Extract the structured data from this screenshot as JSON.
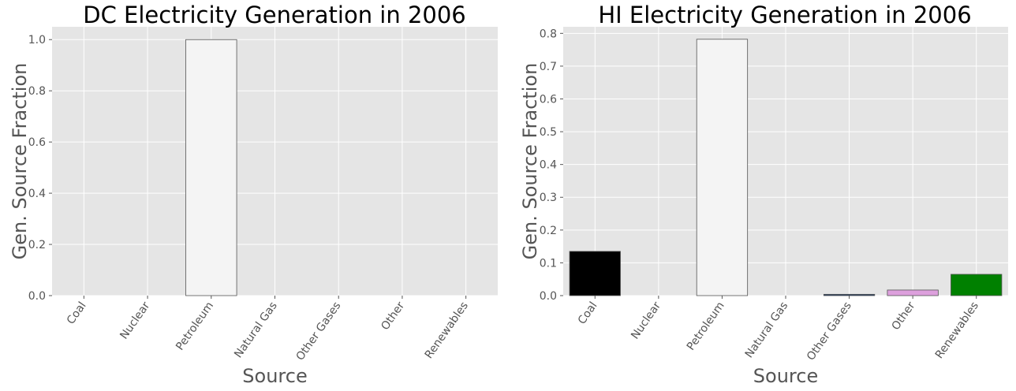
{
  "chart_data": [
    {
      "type": "bar",
      "title": "DC Electricity Generation in 2006",
      "xlabel": "Source",
      "ylabel": "Gen. Source Fraction",
      "categories": [
        "Coal",
        "Nuclear",
        "Petroleum",
        "Natural Gas",
        "Other Gases",
        "Other",
        "Renewables"
      ],
      "values": [
        0,
        0,
        1.0,
        0,
        0,
        0,
        0
      ],
      "colors": [
        "#000000",
        "#ff0000",
        "#f4f4f4",
        "#4169e1",
        "#1e3a5f",
        "#dda0dd",
        "#008000"
      ],
      "ylim": [
        0,
        1.05
      ],
      "yticks": [
        "0.0",
        "0.2",
        "0.4",
        "0.6",
        "0.8",
        "1.0"
      ],
      "grid": true,
      "background": "#e5e5e5"
    },
    {
      "type": "bar",
      "title": "HI Electricity Generation in 2006",
      "xlabel": "Source",
      "ylabel": "Gen. Source Fraction",
      "categories": [
        "Coal",
        "Nuclear",
        "Petroleum",
        "Natural Gas",
        "Other Gases",
        "Other",
        "Renewables"
      ],
      "values": [
        0.135,
        0,
        0.782,
        0,
        0.004,
        0.017,
        0.065
      ],
      "colors": [
        "#000000",
        "#ff0000",
        "#f4f4f4",
        "#4169e1",
        "#1e3a5f",
        "#dda0dd",
        "#008000"
      ],
      "ylim": [
        0,
        0.82
      ],
      "yticks": [
        "0.0",
        "0.1",
        "0.2",
        "0.3",
        "0.4",
        "0.5",
        "0.6",
        "0.7",
        "0.8"
      ],
      "grid": true,
      "background": "#e5e5e5"
    }
  ]
}
